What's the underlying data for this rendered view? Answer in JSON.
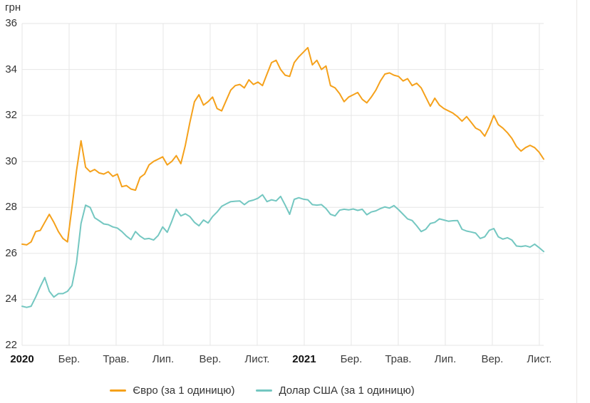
{
  "page": {
    "y_axis_title": "грн"
  },
  "chart_data": {
    "type": "line",
    "title": "",
    "xlabel": "",
    "ylabel": "грн",
    "grid": true,
    "legend_position": "bottom",
    "grid_color": "#e6e6e6",
    "text_color": "#333333",
    "y_axis": {
      "min": 22,
      "max": 36,
      "step": 2,
      "tick_labels": [
        "36",
        "34",
        "32",
        "30",
        "28",
        "26",
        "24",
        "22"
      ]
    },
    "x_axis": {
      "tick_labels": [
        {
          "label": "2020",
          "bold": true
        },
        {
          "label": "Бер.",
          "bold": false
        },
        {
          "label": "Трав.",
          "bold": false
        },
        {
          "label": "Лип.",
          "bold": false
        },
        {
          "label": "Вер.",
          "bold": false
        },
        {
          "label": "Лист.",
          "bold": false
        },
        {
          "label": "2021",
          "bold": true
        },
        {
          "label": "Бер.",
          "bold": false
        },
        {
          "label": "Трав.",
          "bold": false
        },
        {
          "label": "Лип.",
          "bold": false
        },
        {
          "label": "Вер.",
          "bold": false
        },
        {
          "label": "Лист.",
          "bold": false
        }
      ]
    },
    "series": [
      {
        "id": "eur-line",
        "name": "Євро (за 1 одиницю)",
        "color": "#f5a11b",
        "values": [
          26.4,
          26.37,
          26.5,
          26.95,
          27.0,
          27.35,
          27.7,
          27.35,
          26.95,
          26.65,
          26.5,
          28.0,
          29.6,
          30.9,
          29.75,
          29.55,
          29.65,
          29.5,
          29.45,
          29.55,
          29.35,
          29.45,
          28.9,
          28.95,
          28.8,
          28.75,
          29.3,
          29.45,
          29.85,
          30.0,
          30.1,
          30.2,
          29.85,
          30.0,
          30.25,
          29.9,
          30.7,
          31.7,
          32.6,
          32.9,
          32.45,
          32.6,
          32.8,
          32.3,
          32.2,
          32.65,
          33.1,
          33.3,
          33.35,
          33.2,
          33.55,
          33.35,
          33.45,
          33.3,
          33.8,
          34.3,
          34.4,
          34.0,
          33.75,
          33.7,
          34.3,
          34.55,
          34.75,
          34.95,
          34.2,
          34.4,
          34.0,
          34.15,
          33.3,
          33.2,
          32.95,
          32.6,
          32.8,
          32.9,
          33.0,
          32.7,
          32.55,
          32.8,
          33.1,
          33.5,
          33.8,
          33.85,
          33.75,
          33.7,
          33.5,
          33.6,
          33.3,
          33.4,
          33.2,
          32.8,
          32.4,
          32.75,
          32.45,
          32.3,
          32.2,
          32.1,
          31.95,
          31.75,
          31.95,
          31.7,
          31.45,
          31.35,
          31.1,
          31.5,
          32.0,
          31.6,
          31.45,
          31.25,
          31.0,
          30.65,
          30.45,
          30.6,
          30.7,
          30.6,
          30.4,
          30.1
        ]
      },
      {
        "id": "usd-line",
        "name": "Долар США (за 1 одиницю)",
        "color": "#74c7c1",
        "values": [
          23.7,
          23.65,
          23.7,
          24.1,
          24.55,
          24.95,
          24.35,
          24.1,
          24.25,
          24.25,
          24.35,
          24.6,
          25.6,
          27.3,
          28.1,
          28.0,
          27.55,
          27.42,
          27.28,
          27.25,
          27.15,
          27.1,
          26.95,
          26.75,
          26.6,
          26.95,
          26.75,
          26.62,
          26.65,
          26.58,
          26.78,
          27.15,
          26.92,
          27.4,
          27.92,
          27.63,
          27.72,
          27.6,
          27.35,
          27.2,
          27.45,
          27.32,
          27.6,
          27.8,
          28.05,
          28.15,
          28.25,
          28.27,
          28.28,
          28.12,
          28.27,
          28.32,
          28.4,
          28.55,
          28.25,
          28.33,
          28.28,
          28.48,
          28.1,
          27.7,
          28.35,
          28.42,
          28.36,
          28.33,
          28.12,
          28.1,
          28.12,
          27.95,
          27.7,
          27.63,
          27.88,
          27.92,
          27.89,
          27.93,
          27.87,
          27.92,
          27.68,
          27.8,
          27.85,
          27.95,
          28.02,
          27.97,
          28.08,
          27.9,
          27.7,
          27.5,
          27.43,
          27.2,
          26.95,
          27.05,
          27.3,
          27.35,
          27.5,
          27.45,
          27.4,
          27.42,
          27.43,
          27.05,
          26.97,
          26.93,
          26.88,
          26.65,
          26.72,
          27.0,
          27.08,
          26.72,
          26.62,
          26.68,
          26.58,
          26.32,
          26.3,
          26.33,
          26.27,
          26.4,
          26.25,
          26.08
        ]
      }
    ]
  }
}
